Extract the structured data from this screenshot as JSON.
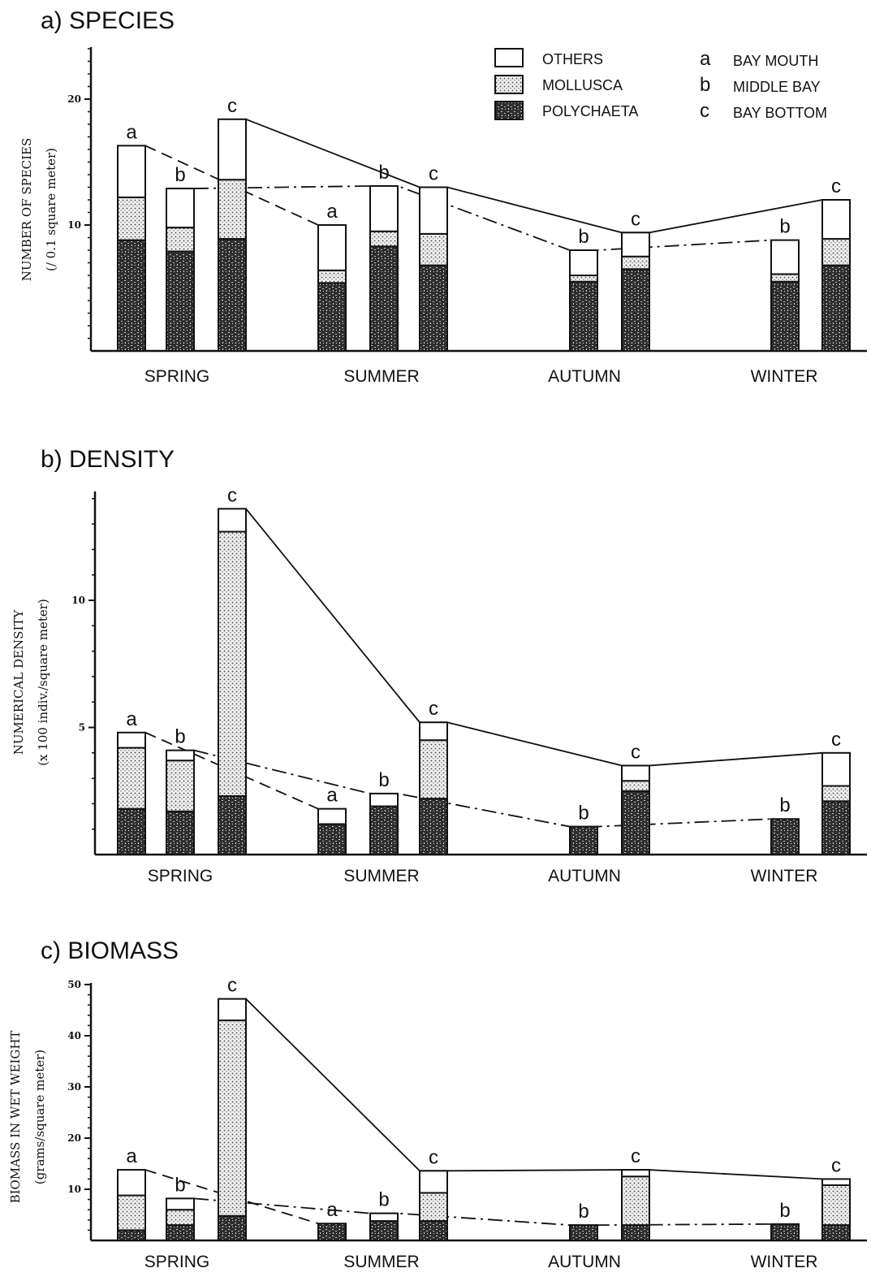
{
  "chart_data": [
    {
      "type": "bar",
      "title": "a)  SPECIES",
      "ylabel": "NUMBER OF SPECIES",
      "ylabel2": "(/ 0.1 square meter)",
      "yticks": [
        10,
        20
      ],
      "ylim": [
        0,
        24
      ],
      "categories": [
        "SPRING",
        "SUMMER",
        "AUTUMN",
        "WINTER"
      ],
      "bars": [
        {
          "season": "SPRING",
          "station": "a",
          "polychaeta": 8.8,
          "mollusca": 3.4,
          "others": 4.1
        },
        {
          "season": "SPRING",
          "station": "b",
          "polychaeta": 7.9,
          "mollusca": 1.9,
          "others": 3.1
        },
        {
          "season": "SPRING",
          "station": "c",
          "polychaeta": 8.9,
          "mollusca": 4.7,
          "others": 4.8
        },
        {
          "season": "SUMMER",
          "station": "a",
          "polychaeta": 5.4,
          "mollusca": 1.0,
          "others": 3.6
        },
        {
          "season": "SUMMER",
          "station": "b",
          "polychaeta": 8.3,
          "mollusca": 1.2,
          "others": 3.6
        },
        {
          "season": "SUMMER",
          "station": "c",
          "polychaeta": 6.8,
          "mollusca": 2.5,
          "others": 3.7
        },
        {
          "season": "AUTUMN",
          "station": "b",
          "polychaeta": 5.5,
          "mollusca": 0.5,
          "others": 2.0
        },
        {
          "season": "AUTUMN",
          "station": "c",
          "polychaeta": 6.5,
          "mollusca": 1.0,
          "others": 1.9
        },
        {
          "season": "WINTER",
          "station": "b",
          "polychaeta": 5.5,
          "mollusca": 0.6,
          "others": 2.7
        },
        {
          "season": "WINTER",
          "station": "c",
          "polychaeta": 6.8,
          "mollusca": 2.1,
          "others": 3.1
        }
      ]
    },
    {
      "type": "bar",
      "title": "b)  DENSITY",
      "ylabel": "NUMERICAL DENSITY",
      "ylabel2": "(x 100 indiv./square meter)",
      "yticks": [
        5,
        10
      ],
      "ylim": [
        0,
        14
      ],
      "categories": [
        "SPRING",
        "SUMMER",
        "AUTUMN",
        "WINTER"
      ],
      "bars": [
        {
          "season": "SPRING",
          "station": "a",
          "polychaeta": 1.8,
          "mollusca": 2.4,
          "others": 0.6
        },
        {
          "season": "SPRING",
          "station": "b",
          "polychaeta": 1.7,
          "mollusca": 2.0,
          "others": 0.4
        },
        {
          "season": "SPRING",
          "station": "c",
          "polychaeta": 2.3,
          "mollusca": 10.4,
          "others": 0.9
        },
        {
          "season": "SUMMER",
          "station": "a",
          "polychaeta": 1.2,
          "mollusca": 0.0,
          "others": 0.6
        },
        {
          "season": "SUMMER",
          "station": "b",
          "polychaeta": 1.9,
          "mollusca": 0.0,
          "others": 0.5
        },
        {
          "season": "SUMMER",
          "station": "c",
          "polychaeta": 2.2,
          "mollusca": 2.3,
          "others": 0.7
        },
        {
          "season": "AUTUMN",
          "station": "b",
          "polychaeta": 1.1,
          "mollusca": 0.0,
          "others": 0.0
        },
        {
          "season": "AUTUMN",
          "station": "c",
          "polychaeta": 2.5,
          "mollusca": 0.4,
          "others": 0.6
        },
        {
          "season": "WINTER",
          "station": "b",
          "polychaeta": 1.4,
          "mollusca": 0.0,
          "others": 0.0
        },
        {
          "season": "WINTER",
          "station": "c",
          "polychaeta": 2.1,
          "mollusca": 0.6,
          "others": 1.3
        }
      ]
    },
    {
      "type": "bar",
      "title": "c)  BIOMASS",
      "ylabel": "BIOMASS IN WET WEIGHT",
      "ylabel2": "(grams/square meter)",
      "yticks": [
        10,
        20,
        30,
        40,
        50
      ],
      "ylim": [
        0,
        50
      ],
      "categories": [
        "SPRING",
        "SUMMER",
        "AUTUMN",
        "WINTER"
      ],
      "bars": [
        {
          "season": "SPRING",
          "station": "a",
          "polychaeta": 2.0,
          "mollusca": 6.8,
          "others": 5.0
        },
        {
          "season": "SPRING",
          "station": "b",
          "polychaeta": 3.0,
          "mollusca": 3.0,
          "others": 2.2
        },
        {
          "season": "SPRING",
          "station": "c",
          "polychaeta": 4.8,
          "mollusca": 38.2,
          "others": 4.2
        },
        {
          "season": "SUMMER",
          "station": "a",
          "polychaeta": 3.3,
          "mollusca": 0.0,
          "others": 0.0
        },
        {
          "season": "SUMMER",
          "station": "b",
          "polychaeta": 3.8,
          "mollusca": 0.0,
          "others": 1.5
        },
        {
          "season": "SUMMER",
          "station": "c",
          "polychaeta": 3.8,
          "mollusca": 5.5,
          "others": 4.3
        },
        {
          "season": "AUTUMN",
          "station": "b",
          "polychaeta": 3.0,
          "mollusca": 0.0,
          "others": 0.0
        },
        {
          "season": "AUTUMN",
          "station": "c",
          "polychaeta": 3.0,
          "mollusca": 9.5,
          "others": 1.3
        },
        {
          "season": "WINTER",
          "station": "b",
          "polychaeta": 3.2,
          "mollusca": 0.0,
          "others": 0.0
        },
        {
          "season": "WINTER",
          "station": "c",
          "polychaeta": 3.0,
          "mollusca": 7.8,
          "others": 1.2
        }
      ]
    }
  ],
  "legend": {
    "components": [
      {
        "key": "others",
        "label": "OTHERS"
      },
      {
        "key": "mollusca",
        "label": "MOLLUSCA"
      },
      {
        "key": "polychaeta",
        "label": "POLYCHAETA"
      }
    ],
    "stations": [
      {
        "key": "a",
        "label": "BAY MOUTH"
      },
      {
        "key": "b",
        "label": "MIDDLE BAY"
      },
      {
        "key": "c",
        "label": "BAY BOTTOM"
      }
    ]
  },
  "colors": {
    "ink": "#111111",
    "others": "#ffffff",
    "mollusca": "#d6d6d6",
    "polychaeta": "#4a4a4a"
  }
}
